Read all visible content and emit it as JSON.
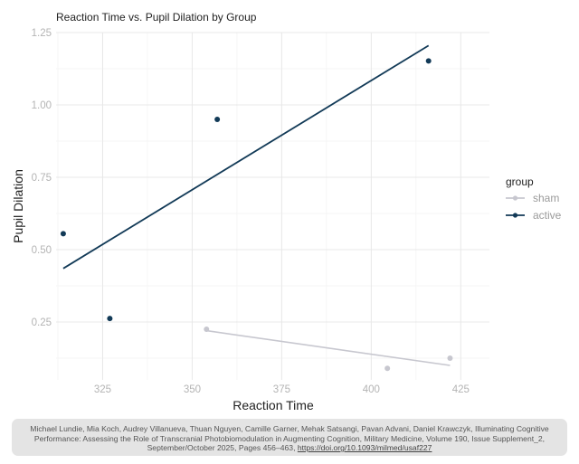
{
  "chart_data": {
    "type": "scatter",
    "title": "Reaction Time vs. Pupil Dilation by Group",
    "xlabel": "Reaction Time",
    "ylabel": "Pupil Dilation",
    "xlim": [
      312,
      433
    ],
    "ylim": [
      0.05,
      1.25
    ],
    "x_ticks": [
      325,
      350,
      375,
      400,
      425
    ],
    "y_ticks": [
      0.25,
      0.5,
      0.75,
      1.0,
      1.25
    ],
    "x_tick_labels": [
      "325",
      "350",
      "375",
      "400",
      "425"
    ],
    "y_tick_labels": [
      "0.25",
      "0.50",
      "0.75",
      "1.00",
      "1.25"
    ],
    "grid": true,
    "legend_title": "group",
    "legend_position": "right",
    "series": [
      {
        "name": "sham",
        "color": "#c7c7cf",
        "points": [
          {
            "x": 354,
            "y": 0.225
          },
          {
            "x": 404.5,
            "y": 0.09
          },
          {
            "x": 422,
            "y": 0.125
          }
        ],
        "trend": [
          {
            "x": 354,
            "y": 0.22
          },
          {
            "x": 422,
            "y": 0.1
          }
        ]
      },
      {
        "name": "active",
        "color": "#123a57",
        "points": [
          {
            "x": 314,
            "y": 0.555
          },
          {
            "x": 327,
            "y": 0.262
          },
          {
            "x": 357,
            "y": 0.95
          },
          {
            "x": 416,
            "y": 1.152
          }
        ],
        "trend": [
          {
            "x": 314,
            "y": 0.435
          },
          {
            "x": 416,
            "y": 1.205
          }
        ]
      }
    ]
  },
  "citation": {
    "text": "Michael Lundie, Mia Koch, Audrey Villanueva, Thuan Nguyen, Camille Garner, Mehak Satsangi, Pavan Advani, Daniel Krawczyk, Illuminating Cognitive Performance: Assessing the Role of Transcranial Photobiomodulation in Augmenting Cognition, Military Medicine, Volume 190, Issue Supplement_2, September/October 2025, Pages 456–463, ",
    "link": "https://doi.org/10.1093/milmed/usaf227"
  }
}
